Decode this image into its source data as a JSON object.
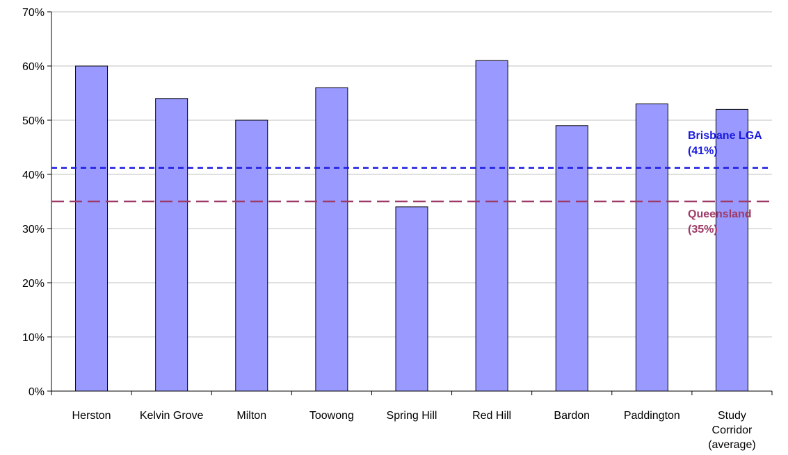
{
  "chart_data": {
    "type": "bar",
    "title": "",
    "xlabel": "",
    "ylabel": "",
    "ylim": [
      0,
      70
    ],
    "yticks": [
      0,
      10,
      20,
      30,
      40,
      50,
      60,
      70
    ],
    "ytick_suffix": "%",
    "grid": true,
    "categories": [
      [
        "Herston"
      ],
      [
        "Kelvin Grove"
      ],
      [
        "Milton"
      ],
      [
        "Toowong"
      ],
      [
        "Spring Hill"
      ],
      [
        "Red Hill"
      ],
      [
        "Bardon"
      ],
      [
        "Paddington"
      ],
      [
        "Study",
        "Corridor",
        "(average)"
      ]
    ],
    "values": [
      60,
      54,
      50,
      56,
      34,
      61,
      49,
      53,
      52
    ],
    "bar_color": "#9999ff",
    "reference_lines": [
      {
        "label_lines": [
          "Brisbane LGA",
          "(41%)"
        ],
        "value": 41.2,
        "color": "#1a1adf"
      },
      {
        "label_lines": [
          "Queensland",
          "(35%)"
        ],
        "value": 35,
        "color": "#9e3a67"
      }
    ]
  }
}
